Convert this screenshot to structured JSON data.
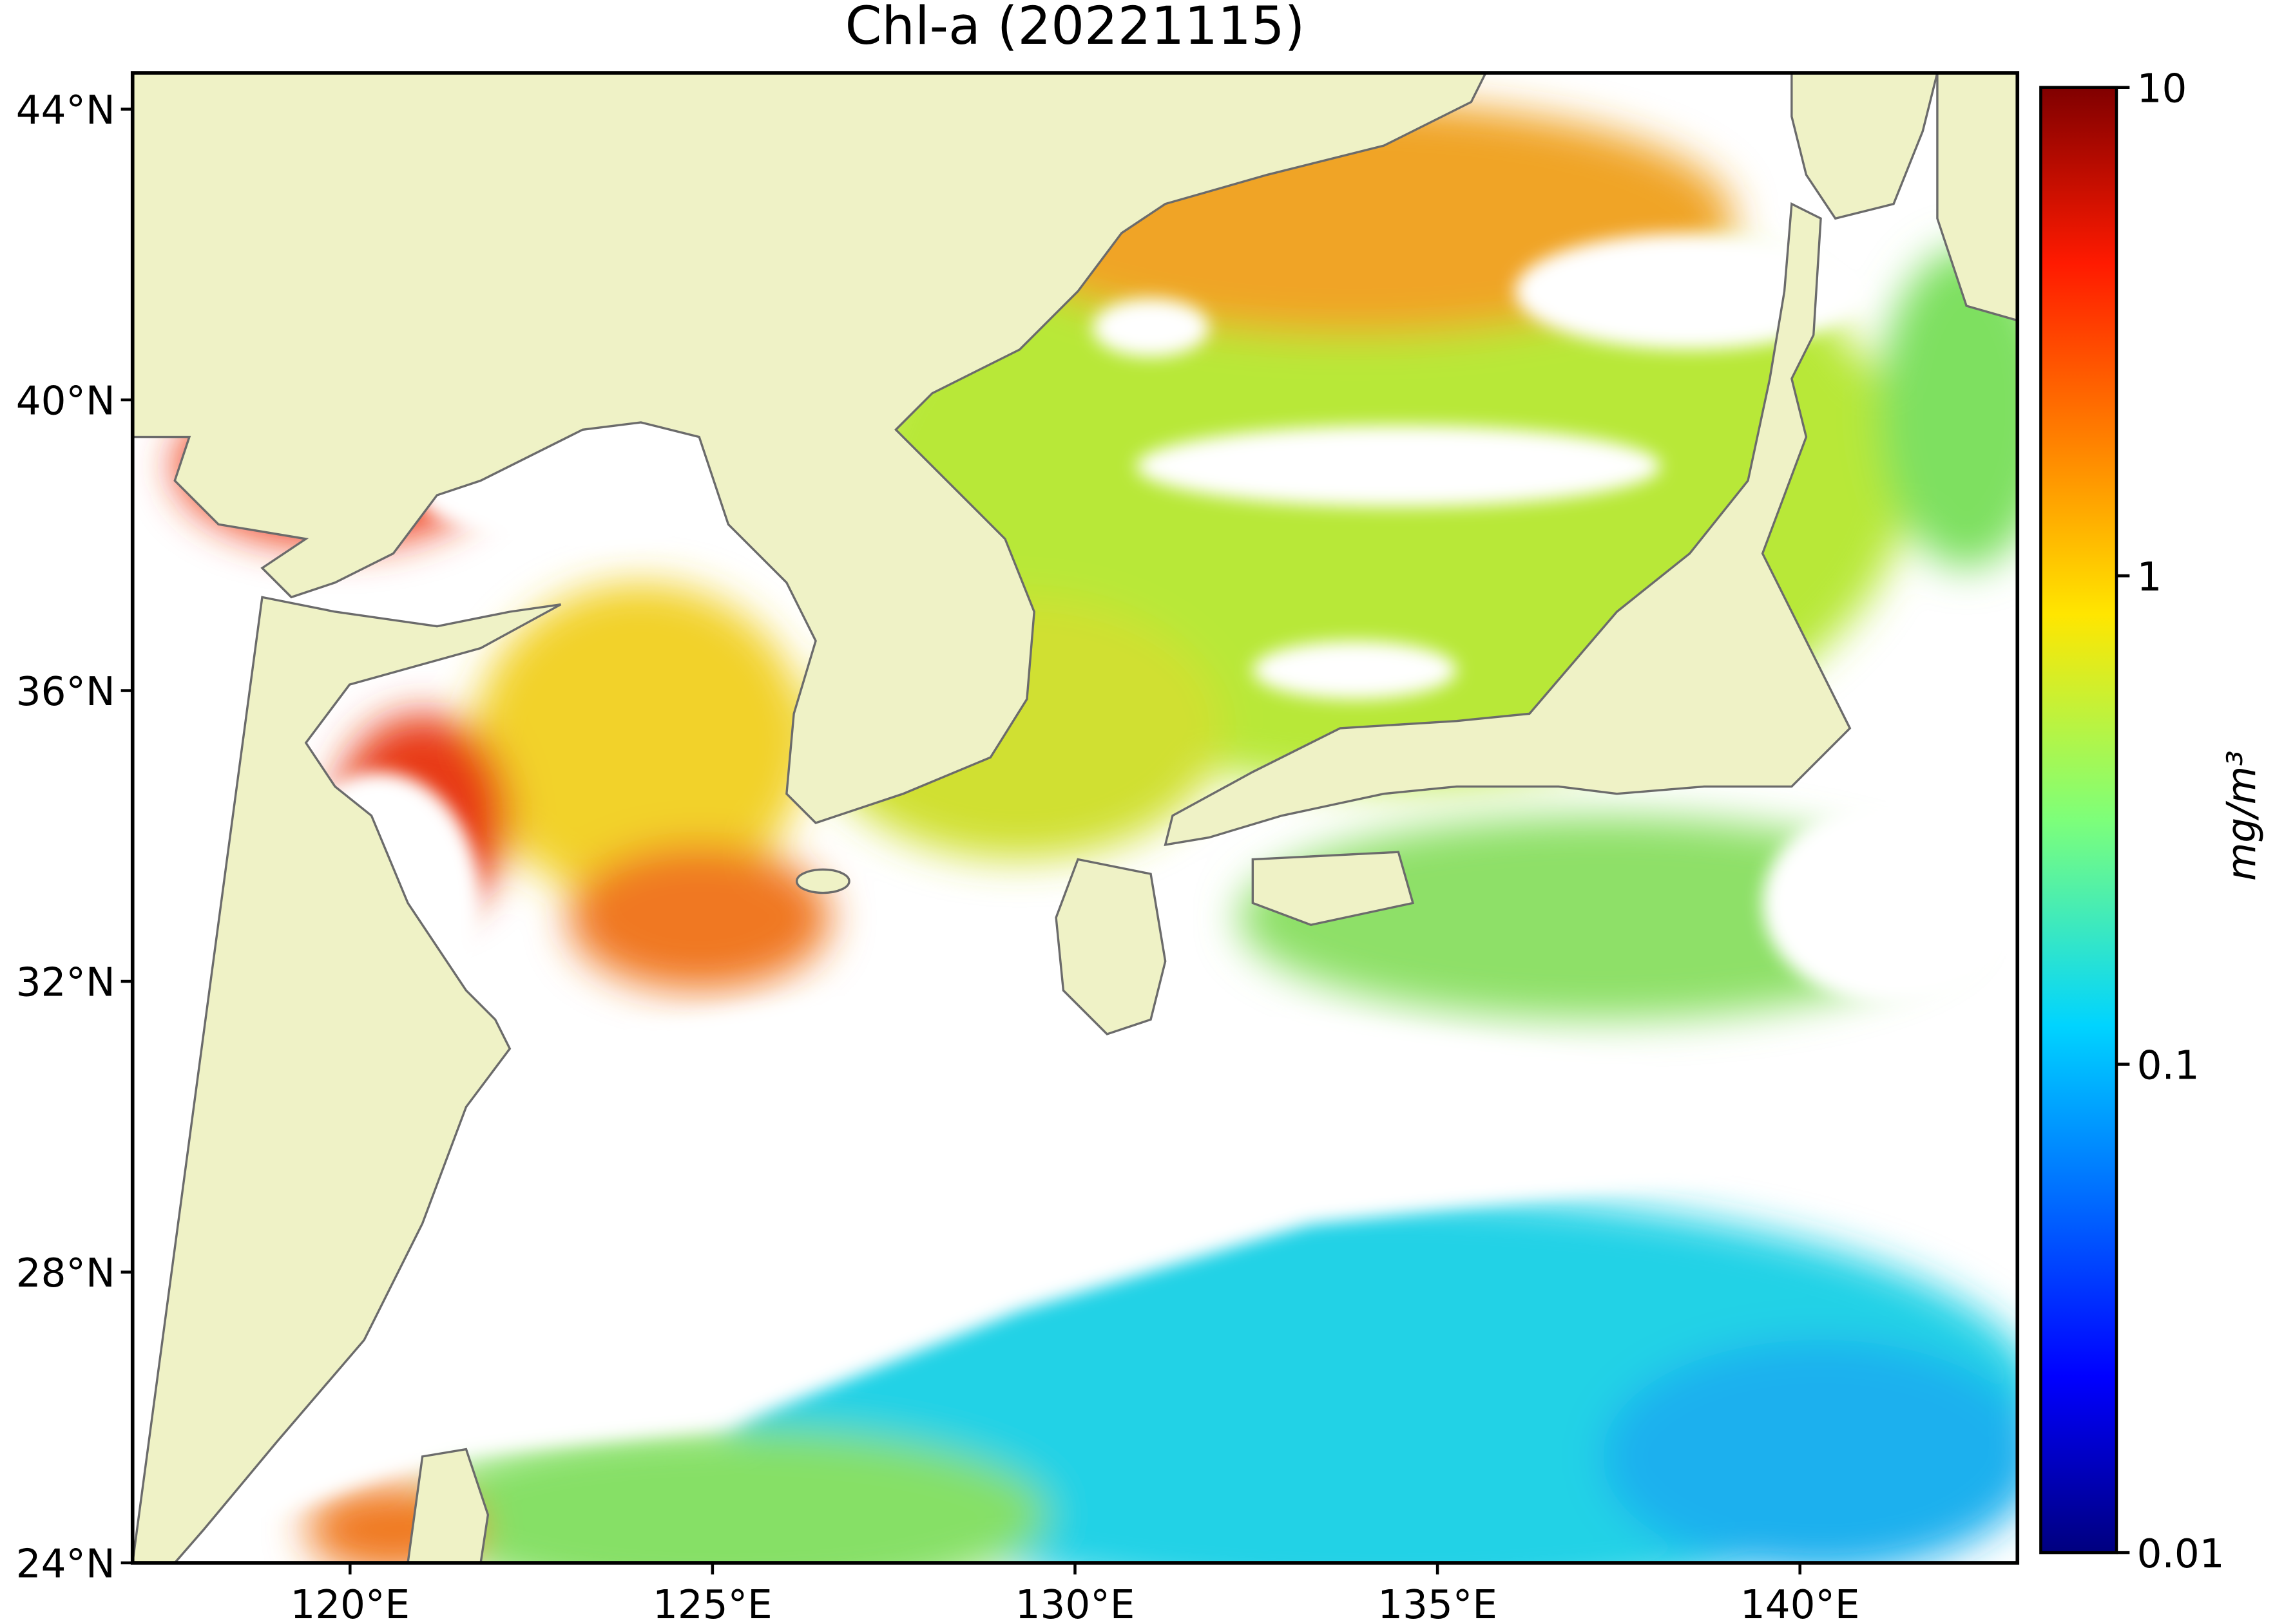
{
  "chart_data": {
    "type": "map",
    "title": "Chl-a (20221115)",
    "xlim": [
      117,
      143
    ],
    "ylim": [
      24,
      44.5
    ],
    "xticks": [
      {
        "value": 120,
        "label": "120°E"
      },
      {
        "value": 125,
        "label": "125°E"
      },
      {
        "value": 130,
        "label": "130°E"
      },
      {
        "value": 135,
        "label": "135°E"
      },
      {
        "value": 140,
        "label": "140°E"
      }
    ],
    "yticks": [
      {
        "value": 24,
        "label": "24°N"
      },
      {
        "value": 28,
        "label": "28°N"
      },
      {
        "value": 32,
        "label": "32°N"
      },
      {
        "value": 36,
        "label": "36°N"
      },
      {
        "value": 40,
        "label": "40°N"
      },
      {
        "value": 44,
        "label": "44°N"
      }
    ],
    "colorbar": {
      "scale": "log",
      "lim": [
        0.01,
        10
      ],
      "ticks": [
        0.01,
        0.1,
        1,
        10
      ],
      "label": "mg/m³"
    }
  }
}
